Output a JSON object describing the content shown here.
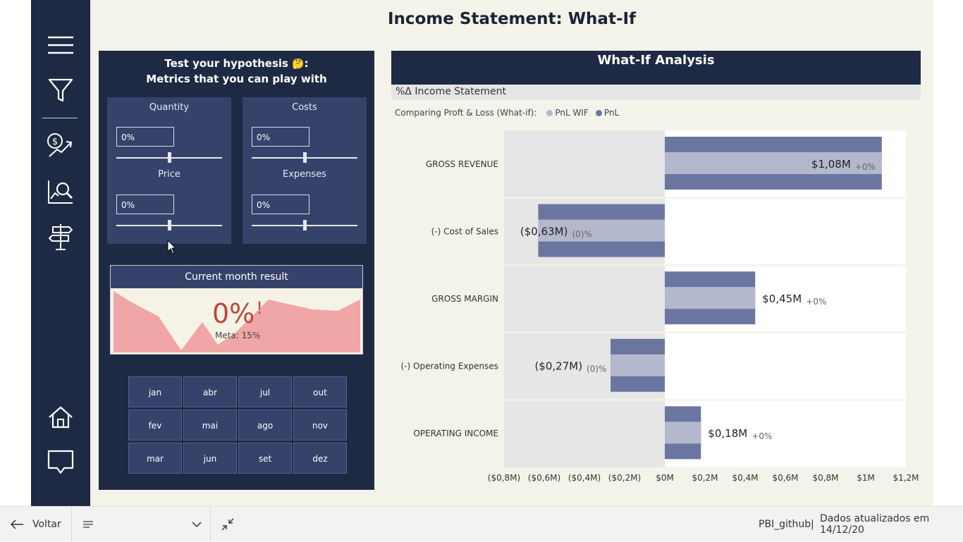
{
  "page": {
    "title": "Income Statement: What-If"
  },
  "nav": {
    "icons": [
      "menu-icon",
      "filter-icon",
      "money-trend-icon",
      "analytics-search-icon",
      "signpost-icon",
      "home-icon",
      "comment-icon"
    ]
  },
  "hypothesis": {
    "line1": "Test your hypothesis",
    "emoji": "🤔",
    "colon": ":",
    "line2": "Metrics that you can play with"
  },
  "sliders": [
    {
      "label": "Quantity",
      "value": "0%",
      "level": 0.5
    },
    {
      "label": "Costs",
      "value": "0%",
      "level": 0.5
    },
    {
      "label": "Price",
      "value": "0%",
      "level": 0.5
    },
    {
      "label": "Expenses",
      "value": "0%",
      "level": 0.5
    }
  ],
  "current_month": {
    "title": "Current month result",
    "value": "0%",
    "flag": "!",
    "meta": "Meta: 15%"
  },
  "months": [
    "jan",
    "abr",
    "jul",
    "out",
    "fev",
    "mai",
    "ago",
    "nov",
    "mar",
    "jun",
    "set",
    "dez"
  ],
  "whatif": {
    "title": "What-If Analysis",
    "subtitle": "%Δ Income Statement",
    "legend_title": "Comparing Proft & Loss (What-if):",
    "legend": [
      {
        "name": "PnL WIF",
        "color": "#b3b8cc"
      },
      {
        "name": "PnL",
        "color": "#6b76a0"
      }
    ]
  },
  "chart_data": {
    "type": "bar",
    "orientation": "horizontal",
    "categories": [
      "GROSS REVENUE",
      "(-) Cost of Sales",
      "GROSS MARGIN",
      "(-) Operating Expenses",
      "OPERATING INCOME"
    ],
    "series": [
      {
        "name": "PnL",
        "values": [
          1.08,
          -0.63,
          0.45,
          -0.27,
          0.18
        ]
      },
      {
        "name": "PnL WIF",
        "values": [
          1.08,
          -0.63,
          0.45,
          -0.27,
          0.18
        ]
      }
    ],
    "value_labels": [
      "$1,08M",
      "($0,63M)",
      "$0,45M",
      "($0,27M)",
      "$0,18M"
    ],
    "delta_labels": [
      "+0%",
      "(0)%",
      "+0%",
      "(0)%",
      "+0%"
    ],
    "xlim": [
      -0.8,
      1.2
    ],
    "x_ticks": [
      "($0,8M)",
      "($0,6M)",
      "($0,4M)",
      "($0,2M)",
      "$0M",
      "$0,2M",
      "$0,4M",
      "$0,6M",
      "$0,8M",
      "$1M",
      "$1,2M"
    ],
    "x_tick_values": [
      -0.8,
      -0.6,
      -0.4,
      -0.2,
      0,
      0.2,
      0.4,
      0.6,
      0.8,
      1.0,
      1.2
    ],
    "colors": {
      "pnl": "#6b76a0",
      "wif": "#b3b8cc",
      "negative_area": "#e6e6e6"
    }
  },
  "bottom": {
    "back": "Voltar",
    "report": "PBI_github",
    "separator": "|",
    "updated": "Dados atualizados em 14/12/20"
  }
}
